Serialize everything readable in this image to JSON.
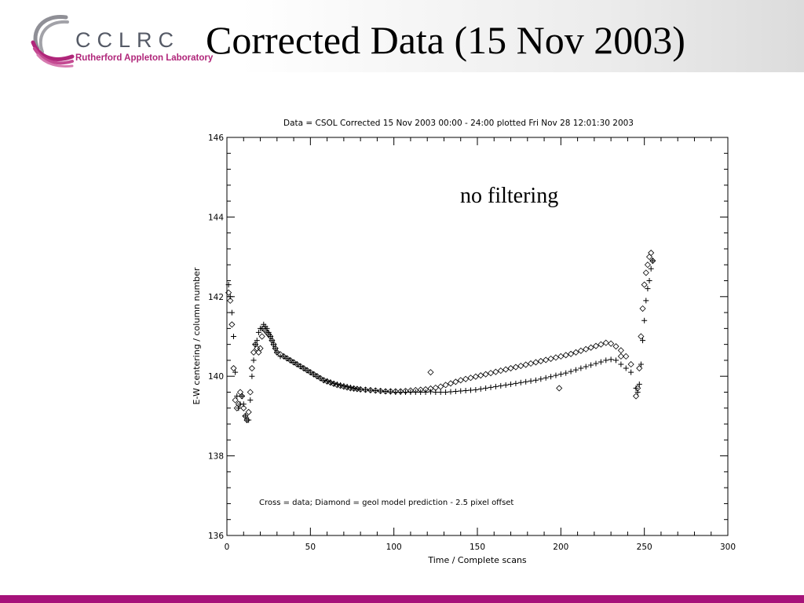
{
  "slide": {
    "title": "Corrected Data (15 Nov 2003)",
    "annotation": "no filtering",
    "logo": {
      "name": "CCLRC",
      "subtitle": "Rutherford Appleton Laboratory"
    },
    "colors": {
      "logo_text": "#555a66",
      "logo_accent": "#b0267a",
      "bottom_bar": "#a6127a"
    }
  },
  "chart_data": {
    "type": "scatter",
    "title": "Data = CSOL Corrected 15 Nov 2003 00:00 - 24:00 plotted Fri Nov 28 12:01:30 2003",
    "xlabel": "Time / Complete scans",
    "ylabel": "E-W centering / column number",
    "xlim": [
      0,
      300
    ],
    "ylim": [
      136,
      146
    ],
    "xticks": [
      "0",
      "50",
      "100",
      "150",
      "200",
      "250",
      "300"
    ],
    "yticks": [
      "136",
      "138",
      "140",
      "142",
      "144",
      "146"
    ],
    "legend_note": "Cross = data; Diamond = geol model prediction - 2.5 pixel offset",
    "grid": false,
    "series": [
      {
        "name": "data",
        "marker": "cross",
        "x": [
          1,
          2,
          3,
          4,
          5,
          6,
          7,
          8,
          9,
          10,
          11,
          12,
          13,
          14,
          15,
          16,
          17,
          18,
          19,
          20,
          21,
          22,
          23,
          24,
          25,
          26,
          27,
          28,
          29,
          30,
          32,
          34,
          36,
          38,
          40,
          42,
          44,
          46,
          48,
          50,
          52,
          54,
          56,
          58,
          60,
          62,
          64,
          66,
          68,
          70,
          72,
          74,
          76,
          78,
          80,
          83,
          86,
          89,
          92,
          95,
          98,
          101,
          104,
          107,
          110,
          113,
          116,
          119,
          122,
          125,
          128,
          131,
          134,
          137,
          140,
          143,
          146,
          149,
          152,
          155,
          158,
          161,
          164,
          167,
          170,
          173,
          176,
          179,
          182,
          185,
          188,
          191,
          194,
          197,
          200,
          203,
          206,
          209,
          212,
          215,
          218,
          221,
          224,
          227,
          230,
          233,
          236,
          239,
          242,
          245,
          246,
          247,
          248,
          249,
          250,
          251,
          252,
          253,
          254,
          255
        ],
        "y": [
          142.3,
          142.0,
          141.6,
          141.0,
          140.1,
          139.5,
          139.2,
          139.3,
          139.5,
          139.3,
          139.0,
          138.9,
          138.9,
          139.4,
          140.0,
          140.4,
          140.8,
          140.9,
          141.1,
          141.2,
          141.2,
          141.3,
          141.25,
          141.2,
          141.1,
          141.0,
          140.9,
          140.8,
          140.7,
          140.6,
          140.5,
          140.5,
          140.45,
          140.4,
          140.35,
          140.3,
          140.25,
          140.2,
          140.15,
          140.1,
          140.05,
          140.0,
          139.95,
          139.9,
          139.88,
          139.85,
          139.82,
          139.8,
          139.78,
          139.76,
          139.74,
          139.72,
          139.7,
          139.68,
          139.67,
          139.66,
          139.65,
          139.64,
          139.63,
          139.62,
          139.61,
          139.6,
          139.6,
          139.6,
          139.6,
          139.6,
          139.6,
          139.6,
          139.61,
          139.6,
          139.6,
          139.6,
          139.61,
          139.62,
          139.63,
          139.64,
          139.65,
          139.66,
          139.68,
          139.7,
          139.72,
          139.74,
          139.76,
          139.78,
          139.8,
          139.82,
          139.84,
          139.86,
          139.88,
          139.9,
          139.93,
          139.96,
          139.99,
          140.02,
          140.05,
          140.08,
          140.12,
          140.16,
          140.2,
          140.24,
          140.28,
          140.32,
          140.36,
          140.4,
          140.42,
          140.4,
          140.3,
          140.2,
          140.1,
          139.7,
          139.6,
          139.8,
          140.3,
          140.9,
          141.4,
          141.9,
          142.2,
          142.4,
          142.7,
          142.9
        ]
      },
      {
        "name": "geol model prediction",
        "marker": "diamond",
        "x": [
          1,
          2,
          3,
          4,
          5,
          6,
          7,
          8,
          9,
          10,
          11,
          12,
          13,
          14,
          15,
          16,
          17,
          18,
          19,
          20,
          21,
          22,
          23,
          24,
          25,
          26,
          27,
          28,
          29,
          30,
          32,
          34,
          36,
          38,
          40,
          42,
          44,
          46,
          48,
          50,
          52,
          54,
          56,
          58,
          60,
          62,
          64,
          66,
          68,
          70,
          72,
          74,
          76,
          78,
          80,
          83,
          86,
          89,
          92,
          95,
          98,
          101,
          104,
          107,
          110,
          113,
          116,
          119,
          122,
          125,
          128,
          131,
          134,
          137,
          140,
          143,
          146,
          149,
          152,
          155,
          158,
          161,
          164,
          167,
          170,
          173,
          176,
          179,
          182,
          185,
          188,
          191,
          194,
          197,
          200,
          203,
          206,
          209,
          212,
          215,
          218,
          221,
          224,
          227,
          230,
          233,
          236,
          239,
          242,
          245,
          246,
          247,
          248,
          249,
          250,
          251,
          252,
          253,
          254,
          255,
          122,
          199,
          236
        ],
        "y": [
          142.1,
          141.9,
          141.3,
          140.2,
          139.4,
          139.2,
          139.3,
          139.6,
          139.5,
          139.2,
          139.0,
          138.9,
          139.1,
          139.6,
          140.2,
          140.6,
          140.8,
          140.7,
          140.6,
          140.7,
          141.0,
          141.2,
          141.15,
          141.1,
          141.05,
          141.0,
          140.9,
          140.8,
          140.7,
          140.6,
          140.55,
          140.5,
          140.45,
          140.4,
          140.35,
          140.3,
          140.25,
          140.2,
          140.15,
          140.1,
          140.05,
          140.0,
          139.95,
          139.9,
          139.87,
          139.84,
          139.81,
          139.78,
          139.76,
          139.74,
          139.72,
          139.7,
          139.69,
          139.68,
          139.67,
          139.66,
          139.65,
          139.64,
          139.63,
          139.62,
          139.62,
          139.62,
          139.62,
          139.63,
          139.64,
          139.65,
          139.66,
          139.67,
          139.69,
          139.71,
          139.74,
          139.78,
          139.82,
          139.86,
          139.9,
          139.93,
          139.96,
          139.99,
          140.02,
          140.05,
          140.08,
          140.11,
          140.14,
          140.17,
          140.2,
          140.23,
          140.26,
          140.29,
          140.32,
          140.35,
          140.38,
          140.41,
          140.44,
          140.47,
          140.5,
          140.53,
          140.56,
          140.6,
          140.64,
          140.68,
          140.72,
          140.76,
          140.8,
          140.84,
          140.82,
          140.75,
          140.65,
          140.5,
          140.3,
          139.5,
          139.7,
          140.2,
          141.0,
          141.7,
          142.3,
          142.6,
          142.8,
          143.0,
          143.1,
          142.9,
          140.1,
          139.7,
          140.5
        ]
      }
    ]
  }
}
